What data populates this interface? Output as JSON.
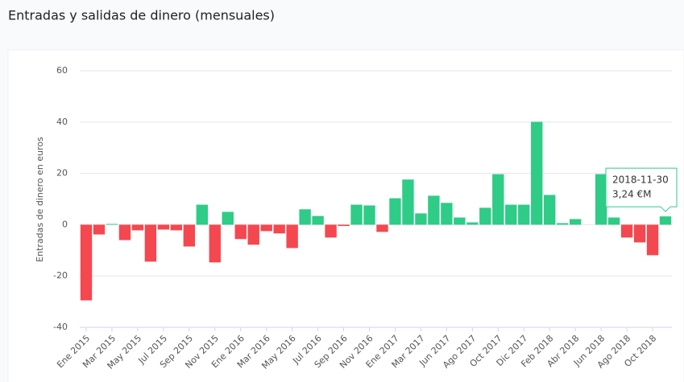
{
  "chart_data": {
    "type": "bar",
    "title": "Entradas y salidas de dinero (mensuales)",
    "y_label": "Entradas de dinero en euros",
    "categories": [
      "Ene 2015",
      null,
      "Mar 2015",
      null,
      "May 2015",
      null,
      "Jul 2015",
      null,
      "Sep 2015",
      null,
      "Nov 2015",
      null,
      "Ene 2016",
      null,
      "Mar 2016",
      null,
      "May 2016",
      null,
      "Jul 2016",
      null,
      "Sep 2016",
      null,
      "Nov 2016",
      null,
      "Ene 2017",
      null,
      "Mar 2017",
      null,
      "Jun 2017",
      null,
      "Ago 2017",
      null,
      "Oct 2017",
      null,
      "Dic 2017",
      null,
      "Feb 2018",
      null,
      "Abr 2018",
      null,
      "Jun 2018",
      null,
      "Ago 2018",
      null,
      "Oct 2018",
      null
    ],
    "values": [
      -29.5,
      -3.8,
      0.3,
      -6,
      -2.2,
      -14.4,
      -1.9,
      -2.2,
      -8.5,
      7.8,
      -14.7,
      5,
      -5.6,
      -7.8,
      -2.5,
      -3.4,
      -9.1,
      6,
      3.4,
      -5,
      -0.5,
      7.8,
      7.5,
      -2.8,
      10.3,
      17.6,
      4.4,
      11.3,
      8.5,
      2.8,
      0.9,
      6.6,
      19.7,
      7.8,
      7.8,
      40.1,
      11.6,
      0.6,
      2.2,
      0,
      19.7,
      2.8,
      -5,
      -6.9,
      -11.9,
      3.24
    ],
    "positive_color": "#2ecc87",
    "negative_color": "#f5474f",
    "ylim": [
      -40,
      60
    ],
    "yticks": [
      -40,
      -20,
      0,
      20,
      40,
      60
    ],
    "grid": true,
    "tooltip": {
      "index": 45,
      "title": "2018-11-30",
      "text": "3,24 €M"
    }
  }
}
